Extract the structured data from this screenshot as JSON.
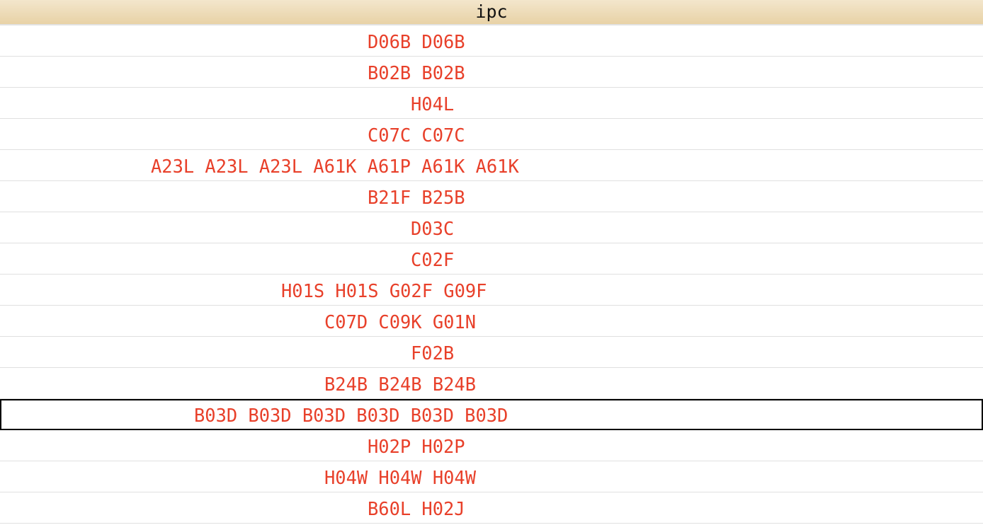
{
  "header": {
    "title": "ipc"
  },
  "text_color": "#e8402a",
  "selected_row": 12,
  "rows": [
    "D06B D06B",
    "B02B B02B",
    "H04L",
    "C07C C07C",
    "A23L A23L A23L A61K A61P A61K A61K",
    "B21F B25B",
    "D03C",
    "C02F",
    "H01S H01S G02F G09F",
    "C07D C09K G01N",
    "F02B",
    "B24B B24B B24B",
    "B03D B03D B03D B03D B03D B03D",
    "H02P H02P",
    "H04W H04W H04W",
    "B60L H02J"
  ]
}
